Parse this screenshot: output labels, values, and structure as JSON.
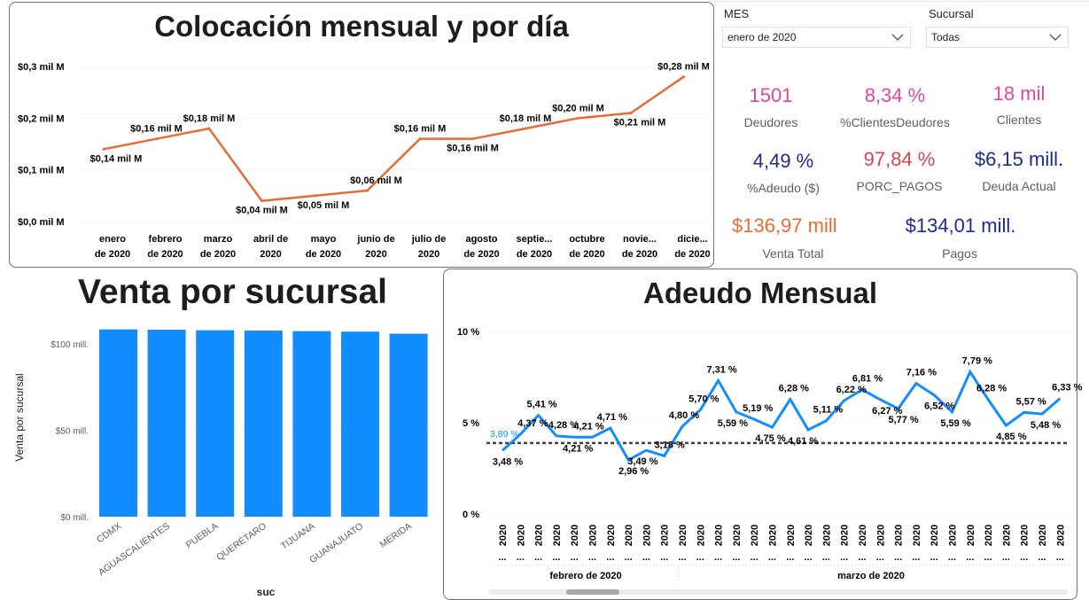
{
  "colocacion": {
    "title": "Colocación mensual y por día",
    "chart_data": {
      "type": "line",
      "color": "#E66C37",
      "y_ticks": [
        "$0,3 mil M",
        "$0,2 mil M",
        "$0,1 mil M",
        "$0,0 mil M"
      ],
      "ylim": [
        0,
        0.3
      ],
      "categories": [
        [
          "enero",
          "de 2020"
        ],
        [
          "febrero",
          "de 2020"
        ],
        [
          "marzo",
          "de 2020"
        ],
        [
          "abril de",
          "2020"
        ],
        [
          "mayo",
          "de 2020"
        ],
        [
          "junio de",
          "2020"
        ],
        [
          "julio de",
          "2020"
        ],
        [
          "agosto",
          "de 2020"
        ],
        [
          "septie...",
          "de 2020"
        ],
        [
          "octubre",
          "de 2020"
        ],
        [
          "novie...",
          "de 2020"
        ],
        [
          "dicie...",
          "de 2020"
        ]
      ],
      "values": [
        0.14,
        0.16,
        0.18,
        0.04,
        0.05,
        0.06,
        0.16,
        0.16,
        0.18,
        0.2,
        0.21,
        0.28
      ],
      "labels": [
        "$0,14 mil M",
        "$0,16 mil M",
        "$0,18 mil M",
        "$0,04 mil M",
        "$0,05 mil M",
        "$0,06 mil M",
        "$0,16 mil M",
        "$0,16 mil M",
        "$0,18 mil M",
        "$0,20 mil M",
        "$0,21 mil M",
        "$0,28 mil M"
      ]
    }
  },
  "slicers": {
    "mes_label": "MES",
    "mes_value": "enero de 2020",
    "sucursal_label": "Sucursal",
    "sucursal_value": "Todas"
  },
  "cards": [
    {
      "value": "1501",
      "label": "Deudores",
      "color": "#E044A7"
    },
    {
      "value": "8,34 %",
      "label": "%ClientesDeudores",
      "color": "#E044A7"
    },
    {
      "value": "18 mil",
      "label": "Clientes",
      "color": "#E044A7"
    },
    {
      "value": "4,49 %",
      "label": "%Adeudo ($)",
      "color": "#1F2A8C"
    },
    {
      "value": "97,84 %",
      "label": "PORC_PAGOS",
      "color": "#D64550"
    },
    {
      "value": "$6,15 mill.",
      "label": "Deuda Actual",
      "color": "#1F2A8C"
    },
    {
      "value": "$136,97 mill",
      "label": "Venta Total",
      "color": "#E66C37"
    },
    {
      "value": "$134,01 mill.",
      "label": "Pagos",
      "color": "#1F2A8C"
    }
  ],
  "venta": {
    "title": "Venta por sucursal",
    "chart_data": {
      "type": "bar",
      "color": "#118DFF",
      "ylabel": "Venta por sucursal",
      "xlabel": "suc",
      "y_ticks": [
        "$100 mill.",
        "$50 mill.",
        "$0 mill."
      ],
      "ylim": [
        0,
        115
      ],
      "categories": [
        "CDMX",
        "AGUASCALIENTES",
        "PUEBLA",
        "QUERÉTARO",
        "TIJUANA",
        "GUANAJUATO",
        "MERIDA"
      ],
      "values": [
        108.5,
        108.3,
        108.0,
        107.8,
        107.5,
        107.2,
        106.0
      ]
    }
  },
  "adeudo": {
    "title": "Adeudo Mensual",
    "chart_data": {
      "type": "line",
      "color": "#118DFF",
      "reference_line": 3.89,
      "reference_label": "3,89 %",
      "y_ticks": [
        "10 %",
        "5 %",
        "0 %"
      ],
      "ylim": [
        0,
        10
      ],
      "values": [
        3.48,
        4.37,
        5.41,
        4.28,
        4.21,
        4.21,
        4.71,
        2.96,
        3.49,
        3.18,
        4.8,
        5.7,
        7.31,
        5.59,
        5.19,
        4.75,
        6.28,
        4.61,
        5.11,
        6.22,
        6.81,
        6.27,
        5.77,
        7.16,
        6.52,
        5.59,
        7.79,
        6.28,
        4.85,
        5.57,
        5.48,
        6.33
      ],
      "labels": [
        "3,48 %",
        "4,37 %",
        "5,41 %",
        "4,28 %",
        "4,21 %",
        "4,21 %",
        "4,71 %",
        "2,96 %",
        "3,49 %",
        "3,18 %",
        "4,80 %",
        "5,70 %",
        "7,31 %",
        "5,59 %",
        "5,19 %",
        "4,75 %",
        "6,28 %",
        "4,61 %",
        "5,11 %",
        "6,22 %",
        "6,81 %",
        "6,27 %",
        "5,77 %",
        "7,16 %",
        "6,52 %",
        "5,59 %",
        "7,79 %",
        "6,28 %",
        "4,85 %",
        "5,57 %",
        "5,48 %",
        "6,33 %"
      ],
      "x_tick_year": "2020",
      "x_tick_truncation": "...",
      "groups": [
        "febrero de 2020",
        "marzo de 2020"
      ]
    }
  }
}
